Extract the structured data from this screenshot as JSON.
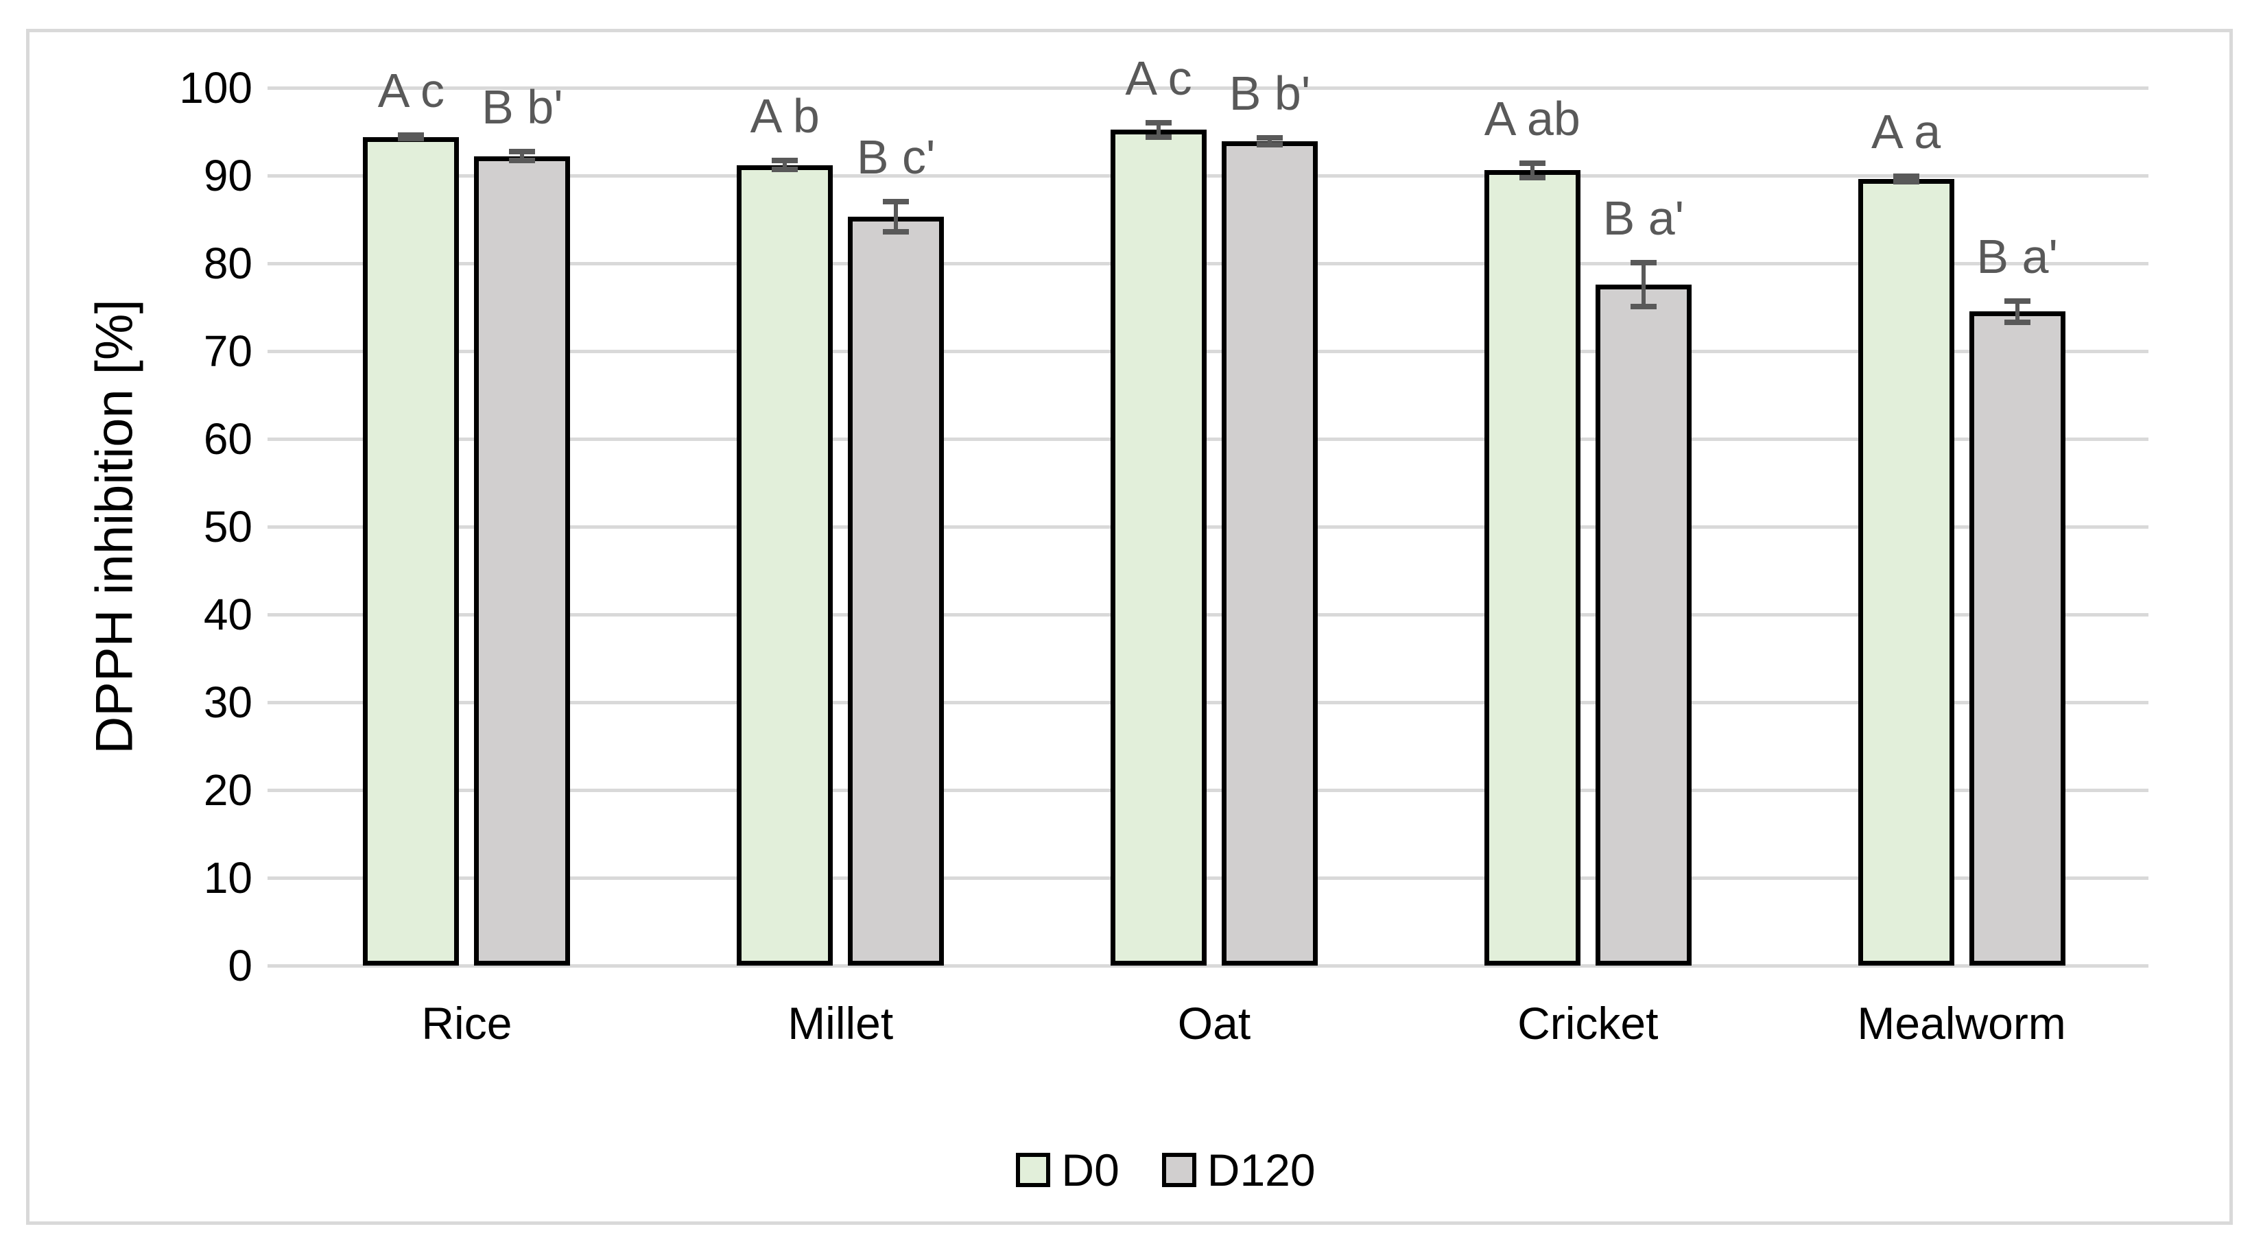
{
  "chart_data": {
    "type": "bar",
    "title": "",
    "categories": [
      "Rice",
      "Millet",
      "Oat",
      "Cricket",
      "Mealworm"
    ],
    "series": [
      {
        "name": "D0",
        "color": "#e2efda",
        "values": [
          94.4,
          91.2,
          95.2,
          90.6,
          89.6
        ],
        "errors": [
          0.2,
          0.5,
          0.8,
          0.8,
          0.3
        ],
        "sig_labels": [
          "A c",
          "A b",
          "A c",
          "A ab",
          "A a"
        ]
      },
      {
        "name": "D120",
        "color": "#d1cfcf",
        "values": [
          92.2,
          85.3,
          93.9,
          77.6,
          74.5
        ],
        "errors": [
          0.5,
          1.7,
          0.4,
          2.5,
          1.2
        ],
        "sig_labels": [
          "B b'",
          "B c'",
          "B b'",
          "B a'",
          "B a'"
        ]
      }
    ],
    "xlabel": "",
    "ylabel": "DPPH inhibition [%]",
    "ylim": [
      0,
      100
    ],
    "y_ticks": [
      0,
      10,
      20,
      30,
      40,
      50,
      60,
      70,
      80,
      90,
      100
    ],
    "grid": true,
    "legend_position": "bottom"
  },
  "styles": {
    "background": "#ffffff",
    "frame_border_color": "#d9d9d9",
    "gridline_color": "#d9d9d9",
    "bar_border_color": "#000000",
    "error_bar_color": "#595959",
    "sig_label_color": "#595959",
    "axis_text_color": "#000000"
  }
}
